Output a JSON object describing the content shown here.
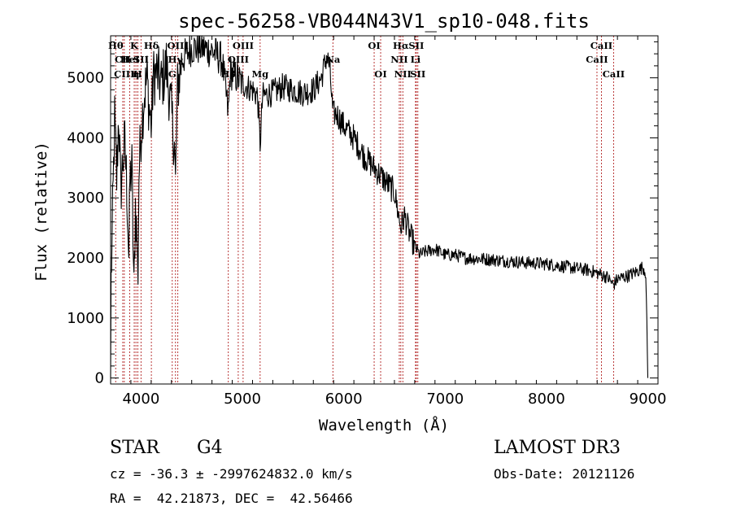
{
  "chart_data": {
    "type": "line",
    "title": "spec-56258-VB044N43V1_sp10-048.fits",
    "xlabel": "Wavelength (Å)",
    "ylabel": "Flux (relative)",
    "xlim": [
      3700,
      9100
    ],
    "ylim": [
      -100,
      5700
    ],
    "xticks": [
      4000,
      5000,
      6000,
      7000,
      8000,
      9000
    ],
    "yticks": [
      0,
      1000,
      2000,
      3000,
      4000,
      5000
    ],
    "spectrum_knots": [
      [
        3700,
        0
      ],
      [
        3705,
        1600
      ],
      [
        3720,
        2700
      ],
      [
        3740,
        4300
      ],
      [
        3760,
        3300
      ],
      [
        3780,
        4400
      ],
      [
        3800,
        3100
      ],
      [
        3820,
        3600
      ],
      [
        3840,
        3900
      ],
      [
        3860,
        3200
      ],
      [
        3880,
        2000
      ],
      [
        3890,
        3300
      ],
      [
        3910,
        3500
      ],
      [
        3930,
        1400
      ],
      [
        3945,
        2900
      ],
      [
        3960,
        2300
      ],
      [
        3968,
        1500
      ],
      [
        3980,
        3400
      ],
      [
        4000,
        4100
      ],
      [
        4030,
        4700
      ],
      [
        4060,
        5000
      ],
      [
        4080,
        4500
      ],
      [
        4102,
        4200
      ],
      [
        4120,
        5000
      ],
      [
        4150,
        5100
      ],
      [
        4200,
        4900
      ],
      [
        4250,
        5200
      ],
      [
        4300,
        4400
      ],
      [
        4330,
        3900
      ],
      [
        4340,
        3200
      ],
      [
        4360,
        4800
      ],
      [
        4400,
        5300
      ],
      [
        4450,
        5400
      ],
      [
        4500,
        5500
      ],
      [
        4600,
        5500
      ],
      [
        4700,
        5450
      ],
      [
        4800,
        5300
      ],
      [
        4861,
        4400
      ],
      [
        4880,
        5100
      ],
      [
        4950,
        5000
      ],
      [
        5000,
        4900
      ],
      [
        5050,
        4850
      ],
      [
        5100,
        4800
      ],
      [
        5150,
        4700
      ],
      [
        5175,
        3900
      ],
      [
        5200,
        4700
      ],
      [
        5300,
        4750
      ],
      [
        5400,
        4850
      ],
      [
        5500,
        4800
      ],
      [
        5600,
        4750
      ],
      [
        5700,
        4800
      ],
      [
        5780,
        5000
      ],
      [
        5830,
        5350
      ],
      [
        5860,
        5200
      ],
      [
        5893,
        4400
      ],
      [
        5930,
        4400
      ],
      [
        6000,
        4200
      ],
      [
        6100,
        4000
      ],
      [
        6200,
        3700
      ],
      [
        6300,
        3500
      ],
      [
        6400,
        3300
      ],
      [
        6500,
        3100
      ],
      [
        6563,
        2500
      ],
      [
        6600,
        2700
      ],
      [
        6650,
        2400
      ],
      [
        6700,
        2200
      ],
      [
        6750,
        2050
      ],
      [
        6800,
        2100
      ],
      [
        6900,
        2150
      ],
      [
        7000,
        2050
      ],
      [
        7100,
        2050
      ],
      [
        7200,
        2000
      ],
      [
        7400,
        1980
      ],
      [
        7600,
        1950
      ],
      [
        7800,
        1920
      ],
      [
        8000,
        1900
      ],
      [
        8200,
        1850
      ],
      [
        8400,
        1800
      ],
      [
        8500,
        1750
      ],
      [
        8600,
        1680
      ],
      [
        8662,
        1550
      ],
      [
        8700,
        1650
      ],
      [
        8800,
        1700
      ],
      [
        8900,
        1780
      ],
      [
        8950,
        1850
      ],
      [
        8980,
        1750
      ],
      [
        9000,
        0
      ]
    ],
    "reference_lines": [
      {
        "wavelength": 3750,
        "label": "Hθ",
        "row": 0
      },
      {
        "wavelength": 3820,
        "label": "CII",
        "row": 1
      },
      {
        "wavelength": 3835,
        "label": "CIII",
        "row": 2
      },
      {
        "wavelength": 3889,
        "label": "HeI",
        "row": 1
      },
      {
        "wavelength": 3933,
        "label": "K",
        "row": 0
      },
      {
        "wavelength": 3950,
        "label": "η",
        "row": 2
      },
      {
        "wavelength": 3968,
        "label": "H",
        "row": 2
      },
      {
        "wavelength": 4000,
        "label": "SII",
        "row": 1
      },
      {
        "wavelength": 4102,
        "label": "Hδ",
        "row": 0
      },
      {
        "wavelength": 4308,
        "label": "G",
        "row": 2
      },
      {
        "wavelength": 4340,
        "label": "Hγ",
        "row": 1
      },
      {
        "wavelength": 4363,
        "label": "OIII",
        "row": 0
      },
      {
        "wavelength": 4861,
        "label": "Hβ",
        "row": 2
      },
      {
        "wavelength": 4959,
        "label": "OIII",
        "row": 1
      },
      {
        "wavelength": 5007,
        "label": "OIII",
        "row": 0
      },
      {
        "wavelength": 5175,
        "label": "Mg",
        "row": 2
      },
      {
        "wavelength": 5893,
        "label": "Na",
        "row": 1
      },
      {
        "wavelength": 6300,
        "label": "OI",
        "row": 0
      },
      {
        "wavelength": 6364,
        "label": "OI",
        "row": 2
      },
      {
        "wavelength": 6548,
        "label": "NII",
        "row": 1
      },
      {
        "wavelength": 6563,
        "label": "Hα",
        "row": 0
      },
      {
        "wavelength": 6583,
        "label": "NII",
        "row": 2
      },
      {
        "wavelength": 6708,
        "label": "Li",
        "row": 1
      },
      {
        "wavelength": 6716,
        "label": "SII",
        "row": 0
      },
      {
        "wavelength": 6731,
        "label": "SII",
        "row": 2
      },
      {
        "wavelength": 8498,
        "label": "CaII",
        "row": 1
      },
      {
        "wavelength": 8542,
        "label": "CaII",
        "row": 0
      },
      {
        "wavelength": 8662,
        "label": "CaII",
        "row": 2
      }
    ],
    "colors": {
      "spectrum": "#000000",
      "reference_line": "#b22222",
      "axes": "#000000"
    }
  },
  "info": {
    "object_class": "STAR",
    "subclass": "G4",
    "survey": "LAMOST DR3",
    "velocity": "cz = -36.3 ± -2997624832.0 km/s",
    "obs_date": "Obs-Date: 20121126",
    "coords": "RA =  42.21873, DEC =  42.56466"
  }
}
